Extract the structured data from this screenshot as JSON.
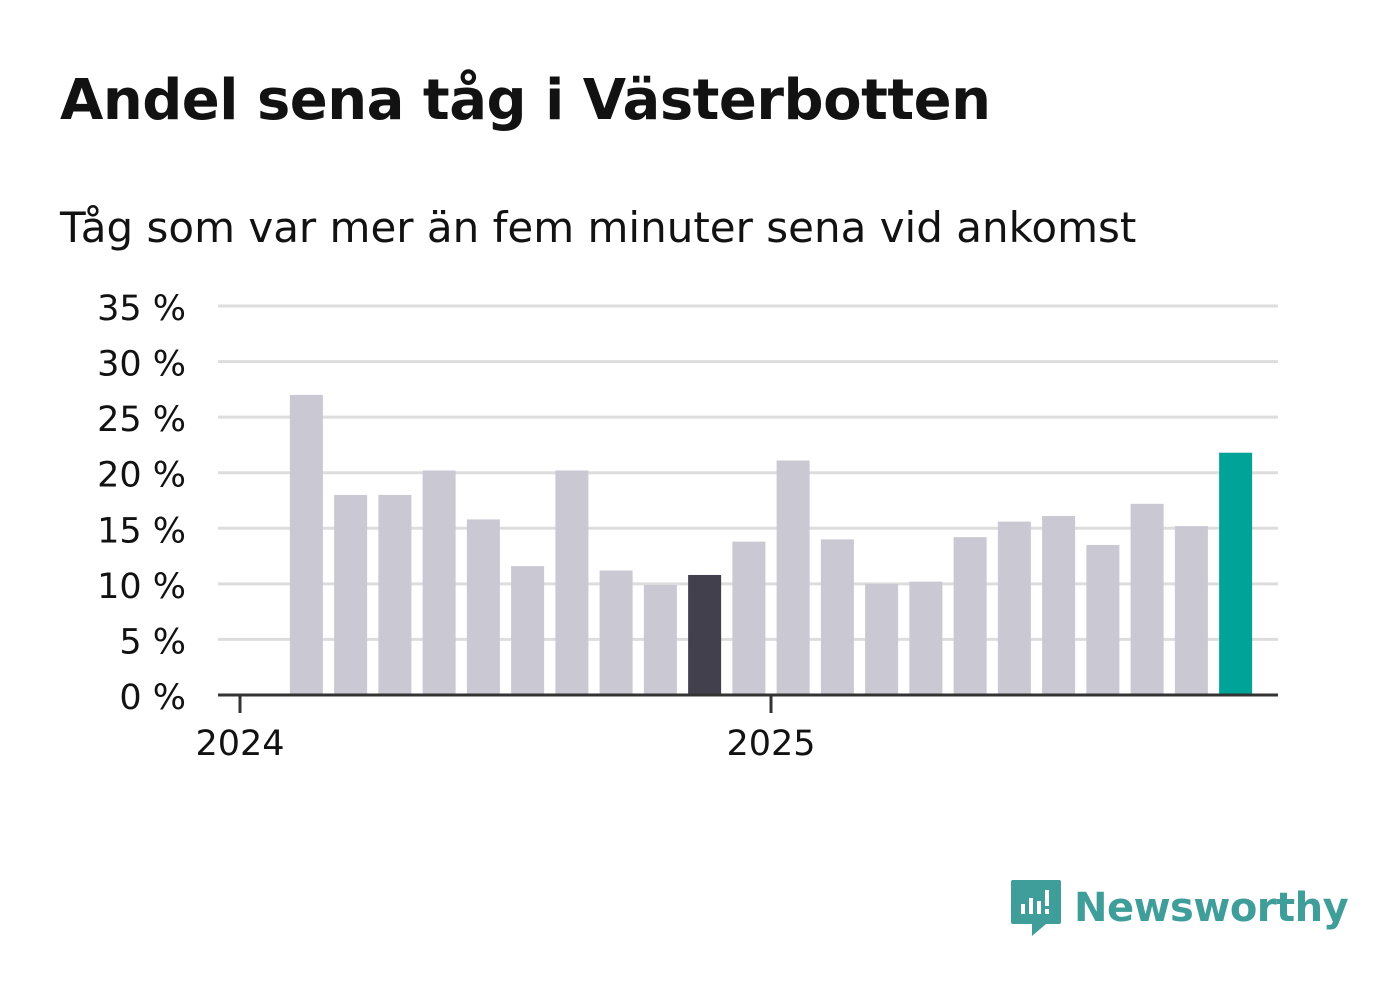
{
  "title": "Andel sena tåg i Västerbotten",
  "subtitle": "Tåg som var mer än fem minuter sena vid ankomst",
  "brand": {
    "name": "Newsworthy",
    "color": "#3f9e99"
  },
  "colors": {
    "bar": "#c9c8d3",
    "highlight_dark": "#42404d",
    "highlight_latest": "#00a398",
    "grid": "#dddddd",
    "axis": "#333333",
    "text": "#121212"
  },
  "chart_data": {
    "type": "bar",
    "title": "Andel sena tåg i Västerbotten",
    "subtitle": "Tåg som var mer än fem minuter sena vid ankomst",
    "xlabel": "",
    "ylabel": "",
    "ylim": [
      0,
      35
    ],
    "yticks": [
      0,
      5,
      10,
      15,
      20,
      25,
      30,
      35
    ],
    "ytick_labels": [
      "0 %",
      "5 %",
      "10 %",
      "15 %",
      "20 %",
      "25 %",
      "30 %",
      "35 %"
    ],
    "xtick_labels": [
      {
        "label": "2024",
        "month_index": 0
      },
      {
        "label": "2025",
        "month_index": 12
      }
    ],
    "grid": true,
    "months": 24,
    "bars": [
      {
        "month_index": 1,
        "value": 27.0
      },
      {
        "month_index": 2,
        "value": 18.0
      },
      {
        "month_index": 3,
        "value": 18.0
      },
      {
        "month_index": 4,
        "value": 20.2
      },
      {
        "month_index": 5,
        "value": 15.8
      },
      {
        "month_index": 6,
        "value": 11.6
      },
      {
        "month_index": 7,
        "value": 20.2
      },
      {
        "month_index": 8,
        "value": 11.2
      },
      {
        "month_index": 9,
        "value": 9.9
      },
      {
        "month_index": 10,
        "value": 10.8,
        "highlight": "dark"
      },
      {
        "month_index": 11,
        "value": 13.8
      },
      {
        "month_index": 12,
        "value": 21.1
      },
      {
        "month_index": 13,
        "value": 14.0
      },
      {
        "month_index": 14,
        "value": 10.0
      },
      {
        "month_index": 15,
        "value": 10.2
      },
      {
        "month_index": 16,
        "value": 14.2
      },
      {
        "month_index": 17,
        "value": 15.6
      },
      {
        "month_index": 18,
        "value": 16.1
      },
      {
        "month_index": 19,
        "value": 13.5
      },
      {
        "month_index": 20,
        "value": 17.2
      },
      {
        "month_index": 21,
        "value": 15.2
      },
      {
        "month_index": 22,
        "value": 21.8,
        "highlight": "latest"
      }
    ]
  }
}
